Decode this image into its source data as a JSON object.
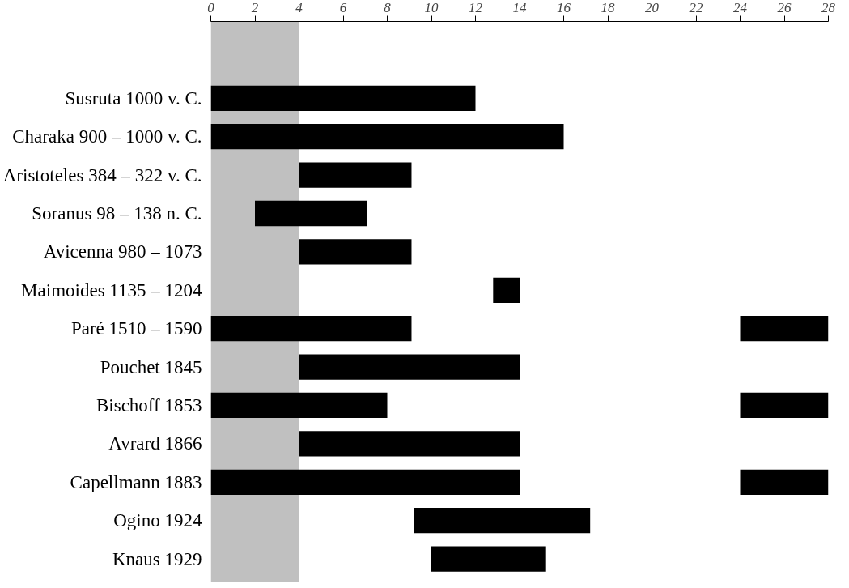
{
  "chart_data": {
    "type": "bar",
    "orientation": "horizontal",
    "categories": [
      "Susruta 1000 v. C.",
      "Charaka 900 – 1000 v. C.",
      "Aristoteles 384 – 322 v. C.",
      "Soranus 98 – 138 n. C.",
      "Avicenna 980 – 1073",
      "Maimoides 1135 – 1204",
      "Paré 1510 – 1590",
      "Pouchet 1845",
      "Bischoff 1853",
      "Avrard 1866",
      "Capellmann 1883",
      "Ogino 1924",
      "Knaus 1929"
    ],
    "series": [
      {
        "color": "#000000",
        "base": [
          0,
          0,
          4,
          2,
          4,
          12.8,
          0,
          4,
          0,
          4,
          0,
          9.2,
          10
        ],
        "values": [
          12,
          16,
          5.1,
          5.1,
          5.1,
          1.2,
          9.1,
          10,
          8,
          10,
          14,
          8,
          5.2
        ]
      },
      {
        "color": "#000000",
        "base": [
          null,
          null,
          null,
          null,
          null,
          null,
          24,
          null,
          24,
          null,
          24,
          null,
          null
        ],
        "values": [
          null,
          null,
          null,
          null,
          null,
          null,
          4,
          null,
          4,
          null,
          4,
          null,
          null
        ]
      }
    ],
    "bands": [
      {
        "axis": "x",
        "from": 0,
        "to": 4,
        "color": "#c0c0c0"
      }
    ],
    "xlim": [
      0,
      28
    ],
    "xticks": [
      0,
      2,
      4,
      6,
      8,
      10,
      12,
      14,
      16,
      18,
      20,
      22,
      24,
      26,
      28
    ],
    "grid": false
  }
}
